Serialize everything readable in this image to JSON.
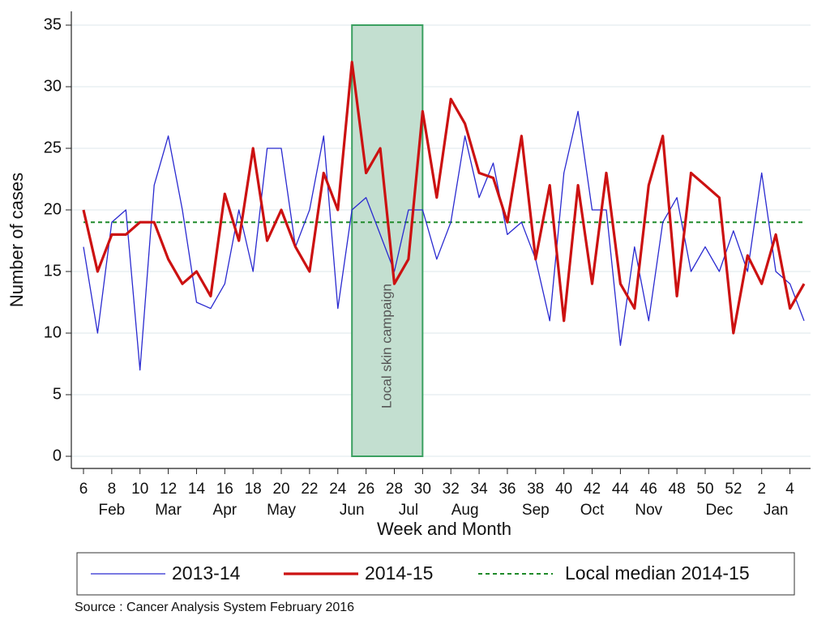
{
  "chart_data": {
    "type": "line",
    "x_label": "Week and Month",
    "y_label": "Number of cases",
    "source": "Source : Cancer Analysis System February 2016",
    "categories": [
      "6",
      null,
      "8",
      null,
      "10",
      null,
      "12",
      null,
      "14",
      null,
      "16",
      null,
      "18",
      null,
      "20",
      null,
      "22",
      null,
      "24",
      null,
      "26",
      null,
      "28",
      null,
      "30",
      null,
      "32",
      null,
      "34",
      null,
      "36",
      null,
      "38",
      null,
      "40",
      null,
      "42",
      null,
      "44",
      null,
      "46",
      null,
      "48",
      null,
      "50",
      null,
      "52",
      null,
      "2",
      null,
      "4",
      null
    ],
    "months": [
      null,
      null,
      "Feb",
      null,
      null,
      null,
      "Mar",
      null,
      null,
      null,
      "Apr",
      null,
      null,
      null,
      "May",
      null,
      null,
      null,
      null,
      "Jun",
      null,
      null,
      null,
      "Jul",
      null,
      null,
      null,
      "Aug",
      null,
      null,
      null,
      null,
      "Sep",
      null,
      null,
      null,
      "Oct",
      null,
      null,
      null,
      "Nov",
      null,
      null,
      null,
      null,
      "Dec",
      null,
      null,
      null,
      "Jan",
      null,
      null
    ],
    "series": [
      {
        "name": "2013-14",
        "color": "#2a2ad0",
        "width": 1.3,
        "values": [
          17,
          10,
          19,
          20,
          7,
          22,
          26,
          20,
          12.5,
          12,
          14,
          20,
          15,
          25,
          25,
          17,
          20,
          26,
          12,
          20,
          21,
          18,
          15,
          20,
          20,
          16,
          19,
          26,
          21,
          23.8,
          18,
          19,
          16,
          11,
          23,
          28,
          20,
          20,
          9,
          17,
          11,
          19,
          21,
          15,
          17,
          15,
          18.3,
          15,
          23,
          15,
          14,
          11
        ]
      },
      {
        "name": "2014-15",
        "color": "#cc1111",
        "width": 3.2,
        "values": [
          20,
          15,
          18,
          18,
          19,
          19,
          16,
          14,
          15,
          13,
          21.3,
          17.5,
          25,
          17.5,
          20,
          17,
          15,
          23,
          20,
          32,
          23,
          25,
          14,
          16,
          28,
          21,
          29,
          27,
          23,
          22.6,
          19,
          26,
          16,
          22,
          11,
          22,
          14,
          23,
          14,
          12,
          22,
          26,
          13,
          23,
          22,
          21,
          10,
          16.3,
          14,
          18,
          12,
          14
        ]
      }
    ],
    "reference_line": {
      "name": "Local median 2014-15",
      "value": 19,
      "color": "#1f8a2a"
    },
    "highlight": {
      "label": "Local skin campaign",
      "x": [
        19,
        24
      ],
      "color": "#c3dfd0",
      "edge": "#3aa060"
    },
    "ylim": [
      0,
      35
    ],
    "yticks": [
      0,
      5,
      10,
      15,
      20,
      25,
      30,
      35
    ],
    "grid": true
  }
}
